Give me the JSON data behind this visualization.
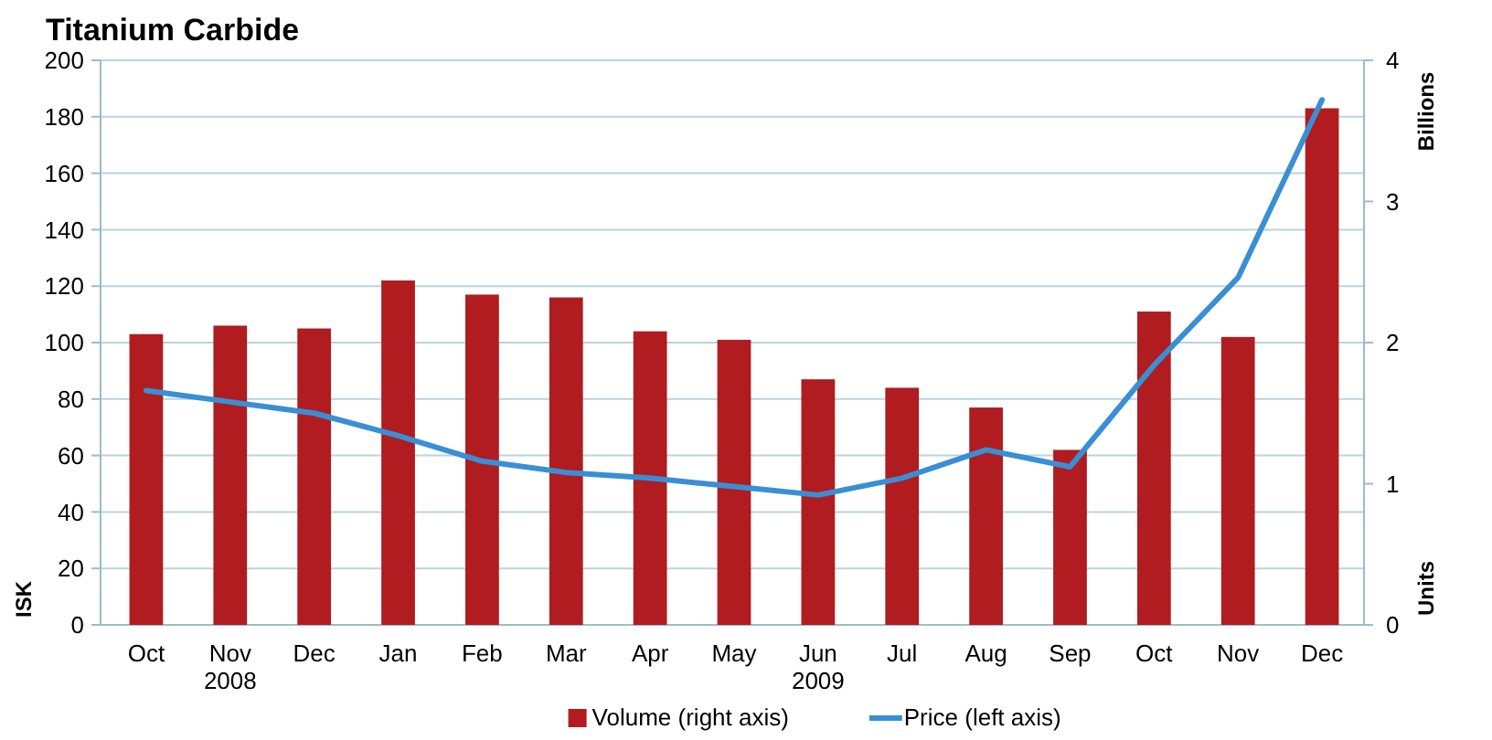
{
  "chart_data": {
    "type": "bar",
    "title": "Titanium Carbide",
    "categories": [
      "Oct",
      "Nov 2008",
      "Dec",
      "Jan",
      "Feb",
      "Mar",
      "Apr",
      "May",
      "Jun 2009",
      "Jul",
      "Aug",
      "Sep",
      "Oct",
      "Nov",
      "Dec"
    ],
    "series": [
      {
        "name": "Volume (right axis)",
        "axis": "y2",
        "color": "#b01c1f",
        "values": [
          2.06,
          2.12,
          2.1,
          2.44,
          2.34,
          2.32,
          2.08,
          2.02,
          1.74,
          1.68,
          1.54,
          1.24,
          2.22,
          2.04,
          3.66
        ]
      },
      {
        "name": "Price (left axis)",
        "type": "line",
        "color": "#3a8fd4",
        "values": [
          83,
          79,
          75,
          67,
          58,
          54,
          52,
          49,
          46,
          52,
          62,
          56,
          92,
          123,
          186
        ]
      }
    ],
    "ylabel": "ISK",
    "y2label": "Units",
    "annotations": [
      "Billions"
    ],
    "ylim": [
      0,
      200
    ],
    "yticks": [
      0,
      20,
      40,
      60,
      80,
      100,
      120,
      140,
      160,
      180,
      200
    ],
    "y2lim": [
      0,
      4
    ],
    "y2ticks": [
      0,
      1,
      2,
      3,
      4
    ],
    "grid": "y",
    "legend": "bottom",
    "marker": "none",
    "line_style": "solid"
  }
}
